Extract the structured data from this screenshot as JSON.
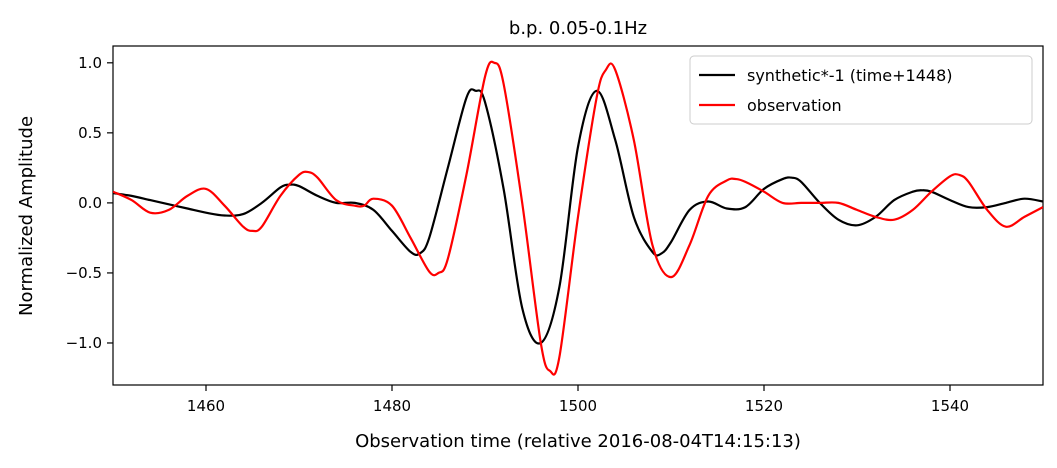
{
  "chart_data": {
    "type": "line",
    "title": "b.p. 0.05-0.1Hz",
    "xlabel": "Observation time (relative 2016-08-04T14:15:13)",
    "ylabel": "Normalized Amplitude",
    "xlim": [
      1450,
      1550
    ],
    "ylim": [
      -1.3,
      1.12
    ],
    "x_ticks": [
      1460,
      1480,
      1500,
      1520,
      1540
    ],
    "y_ticks": [
      -1.0,
      -0.5,
      0.0,
      0.5,
      1.0
    ],
    "x_tick_labels": [
      "1460",
      "1480",
      "1500",
      "1520",
      "1540"
    ],
    "y_tick_labels": [
      "−1.0",
      "−0.5",
      "0.0",
      "0.5",
      "1.0"
    ],
    "grid": false,
    "legend_position": "top-right",
    "series": [
      {
        "name": "synthetic*-1 (time+1448)",
        "color": "#000000",
        "x": [
          1450,
          1452,
          1454,
          1456,
          1458,
          1460,
          1462,
          1464,
          1466,
          1468,
          1469,
          1470,
          1472,
          1474,
          1476,
          1478,
          1480,
          1482,
          1483,
          1484,
          1486,
          1488,
          1489,
          1490,
          1492,
          1494,
          1496,
          1498,
          1500,
          1502,
          1504,
          1506,
          1508,
          1509,
          1510,
          1512,
          1514,
          1516,
          1518,
          1520,
          1522,
          1523,
          1524,
          1526,
          1528,
          1530,
          1532,
          1534,
          1536,
          1537,
          1538,
          1540,
          1542,
          1544,
          1546,
          1548,
          1550
        ],
        "y": [
          0.07,
          0.05,
          0.02,
          -0.01,
          -0.04,
          -0.07,
          -0.09,
          -0.08,
          0.0,
          0.11,
          0.13,
          0.12,
          0.05,
          0.0,
          0.0,
          -0.05,
          -0.2,
          -0.35,
          -0.36,
          -0.25,
          0.25,
          0.75,
          0.8,
          0.72,
          0.1,
          -0.75,
          -1.0,
          -0.6,
          0.4,
          0.8,
          0.45,
          -0.1,
          -0.35,
          -0.36,
          -0.28,
          -0.05,
          0.01,
          -0.04,
          -0.03,
          0.1,
          0.17,
          0.18,
          0.15,
          0.0,
          -0.12,
          -0.16,
          -0.1,
          0.02,
          0.08,
          0.09,
          0.08,
          0.02,
          -0.03,
          -0.03,
          0.0,
          0.03,
          0.01
        ]
      },
      {
        "name": "observation",
        "color": "#ff0000",
        "x": [
          1450,
          1452,
          1454,
          1456,
          1458,
          1460,
          1462,
          1464,
          1465,
          1466,
          1468,
          1470,
          1471,
          1472,
          1474,
          1476,
          1477,
          1478,
          1480,
          1482,
          1484,
          1485,
          1486,
          1488,
          1490,
          1491,
          1492,
          1494,
          1496,
          1497,
          1498,
          1500,
          1502,
          1503,
          1504,
          1506,
          1508,
          1510,
          1512,
          1514,
          1516,
          1517,
          1518,
          1520,
          1522,
          1524,
          1526,
          1528,
          1530,
          1532,
          1534,
          1536,
          1538,
          1540,
          1541,
          1542,
          1544,
          1546,
          1548,
          1550
        ],
        "y": [
          0.08,
          0.02,
          -0.07,
          -0.05,
          0.05,
          0.1,
          -0.02,
          -0.17,
          -0.2,
          -0.17,
          0.05,
          0.2,
          0.22,
          0.18,
          0.02,
          -0.02,
          -0.02,
          0.03,
          -0.02,
          -0.25,
          -0.49,
          -0.5,
          -0.4,
          0.2,
          0.9,
          1.0,
          0.85,
          0.0,
          -1.0,
          -1.2,
          -1.1,
          -0.1,
          0.75,
          0.95,
          0.95,
          0.45,
          -0.3,
          -0.53,
          -0.3,
          0.05,
          0.16,
          0.17,
          0.15,
          0.08,
          0.0,
          0.0,
          0.0,
          0.0,
          -0.05,
          -0.1,
          -0.12,
          -0.05,
          0.08,
          0.19,
          0.2,
          0.15,
          -0.05,
          -0.17,
          -0.1,
          -0.03
        ]
      }
    ]
  }
}
